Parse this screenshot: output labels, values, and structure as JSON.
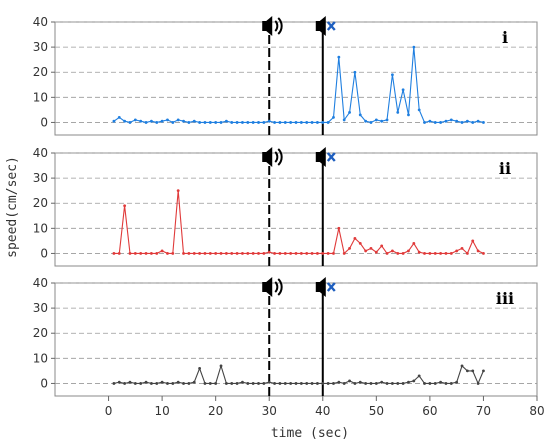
{
  "chart_data": {
    "type": "line",
    "xlabel": "time (sec)",
    "ylabel": "speed(cm/sec)",
    "xlim": [
      -10,
      80
    ],
    "xticks": [
      0,
      10,
      20,
      30,
      40,
      50,
      60,
      70,
      80
    ],
    "ylim": [
      -5,
      40
    ],
    "yticks": [
      0,
      10,
      20,
      30,
      40
    ],
    "grid": "horizontal dashed",
    "markers": {
      "sound_on": {
        "x": 30,
        "icon": "speaker-sound-icon",
        "line": "dashed"
      },
      "sound_off": {
        "x": 40,
        "icon": "speaker-muted-icon",
        "line": "solid"
      }
    },
    "panels": [
      {
        "label": "i",
        "color": "#1f7fe0",
        "x": [
          1,
          2,
          3,
          4,
          5,
          6,
          7,
          8,
          9,
          10,
          11,
          12,
          13,
          14,
          15,
          16,
          17,
          18,
          19,
          20,
          21,
          22,
          23,
          24,
          25,
          26,
          27,
          28,
          29,
          30,
          31,
          32,
          33,
          34,
          35,
          36,
          37,
          38,
          39,
          40,
          41,
          42,
          43,
          44,
          45,
          46,
          47,
          48,
          49,
          50,
          51,
          52,
          53,
          54,
          55,
          56,
          57,
          58,
          59,
          60,
          61,
          62,
          63,
          64,
          65,
          66,
          67,
          68,
          69,
          70
        ],
        "y": [
          0.5,
          2,
          0.5,
          0,
          1,
          0.5,
          0,
          0.5,
          0,
          0.5,
          1,
          0,
          1,
          0.5,
          0,
          0.5,
          0,
          0,
          0,
          0,
          0,
          0.5,
          0,
          0,
          0,
          0,
          0,
          0,
          0,
          0.5,
          0,
          0,
          0,
          0,
          0,
          0,
          0,
          0,
          0,
          0,
          0,
          2,
          26,
          1,
          4,
          20,
          3,
          0.5,
          0,
          1,
          0.5,
          1,
          19,
          4,
          13,
          3,
          30,
          5,
          0,
          0.5,
          0,
          0,
          0.5,
          1,
          0.5,
          0,
          0.5,
          0,
          0.5,
          0
        ]
      },
      {
        "label": "ii",
        "color": "#e03a3a",
        "x": [
          1,
          2,
          3,
          4,
          5,
          6,
          7,
          8,
          9,
          10,
          11,
          12,
          13,
          14,
          15,
          16,
          17,
          18,
          19,
          20,
          21,
          22,
          23,
          24,
          25,
          26,
          27,
          28,
          29,
          30,
          31,
          32,
          33,
          34,
          35,
          36,
          37,
          38,
          39,
          40,
          41,
          42,
          43,
          44,
          45,
          46,
          47,
          48,
          49,
          50,
          51,
          52,
          53,
          54,
          55,
          56,
          57,
          58,
          59,
          60,
          61,
          62,
          63,
          64,
          65,
          66,
          67,
          68,
          69,
          70
        ],
        "y": [
          0,
          0,
          19,
          0,
          0,
          0,
          0,
          0,
          0,
          1,
          0,
          0,
          25,
          0,
          0,
          0,
          0,
          0,
          0,
          0,
          0,
          0,
          0,
          0,
          0,
          0,
          0,
          0,
          0,
          0.5,
          0,
          0,
          0,
          0,
          0,
          0,
          0,
          0,
          0,
          0,
          0,
          0,
          10,
          0,
          2,
          6,
          4,
          1,
          2,
          0.5,
          3,
          0,
          1,
          0,
          0,
          1,
          4,
          0.5,
          0,
          0,
          0,
          0,
          0,
          0,
          1,
          2,
          0,
          5,
          1,
          0
        ]
      },
      {
        "label": "iii",
        "color": "#444444",
        "x": [
          1,
          2,
          3,
          4,
          5,
          6,
          7,
          8,
          9,
          10,
          11,
          12,
          13,
          14,
          15,
          16,
          17,
          18,
          19,
          20,
          21,
          22,
          23,
          24,
          25,
          26,
          27,
          28,
          29,
          30,
          31,
          32,
          33,
          34,
          35,
          36,
          37,
          38,
          39,
          40,
          41,
          42,
          43,
          44,
          45,
          46,
          47,
          48,
          49,
          50,
          51,
          52,
          53,
          54,
          55,
          56,
          57,
          58,
          59,
          60,
          61,
          62,
          63,
          64,
          65,
          66,
          67,
          68,
          69,
          70
        ],
        "y": [
          0,
          0.5,
          0,
          0.5,
          0,
          0,
          0.5,
          0,
          0,
          0.5,
          0,
          0,
          0.5,
          0,
          0,
          0.5,
          6,
          0,
          0,
          0,
          7,
          0,
          0,
          0,
          0.5,
          0,
          0,
          0,
          0,
          0.5,
          0,
          0,
          0,
          0,
          0,
          0,
          0,
          0,
          0,
          0,
          0,
          0,
          0.5,
          0,
          1,
          0,
          0.5,
          0,
          0,
          0,
          0.5,
          0,
          0,
          0,
          0,
          0.5,
          1,
          3,
          0,
          0,
          0,
          0.5,
          0,
          0,
          0.5,
          7,
          5,
          5,
          0,
          5
        ]
      }
    ]
  }
}
